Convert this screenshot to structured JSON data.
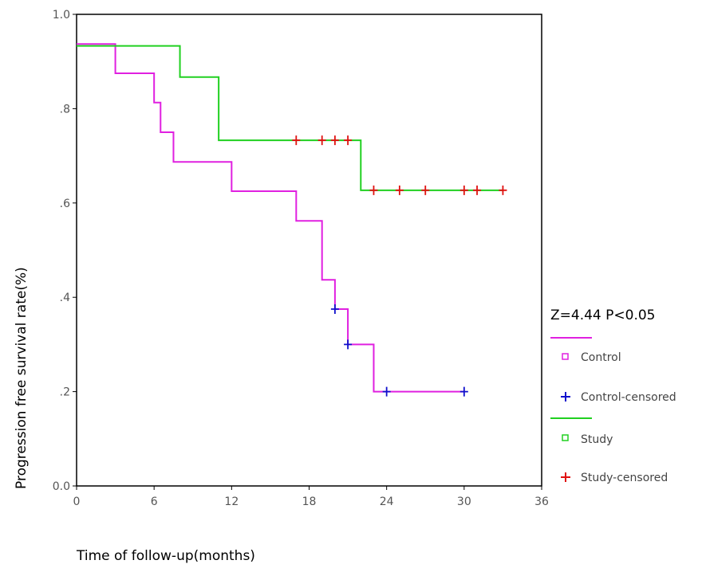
{
  "chart_data": {
    "type": "line",
    "subtype": "kaplan-meier",
    "xlabel": "Time of follow-up(months)",
    "ylabel": "Progression free survival rate(%)",
    "xlim": [
      0,
      36
    ],
    "ylim": [
      0,
      1.0
    ],
    "xticks": [
      {
        "value": 0,
        "label": "0"
      },
      {
        "value": 6,
        "label": "6"
      },
      {
        "value": 12,
        "label": "12"
      },
      {
        "value": 18,
        "label": "18"
      },
      {
        "value": 24,
        "label": "24"
      },
      {
        "value": 30,
        "label": "30"
      },
      {
        "value": 36,
        "label": "36"
      }
    ],
    "yticks": [
      {
        "value": 0,
        "label": "0.0"
      },
      {
        "value": 0.2,
        "label": ".2"
      },
      {
        "value": 0.4,
        "label": ".4"
      },
      {
        "value": 0.6,
        "label": ".6"
      },
      {
        "value": 0.8,
        "label": ".8"
      },
      {
        "value": 1.0,
        "label": "1.0"
      }
    ],
    "grid": false,
    "legend_position": "right",
    "annotation": "Z=4.44 P<0.05",
    "series": [
      {
        "name": "Control",
        "color": "#e020e0",
        "steps": [
          [
            0,
            0.937
          ],
          [
            3,
            0.875
          ],
          [
            6,
            0.813
          ],
          [
            6.5,
            0.75
          ],
          [
            7.5,
            0.687
          ],
          [
            12,
            0.625
          ],
          [
            17,
            0.562
          ],
          [
            19,
            0.437
          ],
          [
            20,
            0.375
          ],
          [
            21,
            0.3
          ],
          [
            23,
            0.2
          ],
          [
            30,
            0.2
          ]
        ],
        "censored_name": "Control-censored",
        "censored_color": "#1010cc",
        "censored": [
          [
            20,
            0.375
          ],
          [
            21,
            0.3
          ],
          [
            24,
            0.2
          ],
          [
            30,
            0.2
          ]
        ]
      },
      {
        "name": "Study",
        "color": "#20d020",
        "steps": [
          [
            0,
            0.933
          ],
          [
            8,
            0.867
          ],
          [
            11,
            0.733
          ],
          [
            22,
            0.627
          ],
          [
            33,
            0.627
          ]
        ],
        "censored_name": "Study-censored",
        "censored_color": "#e01010",
        "censored": [
          [
            17,
            0.733
          ],
          [
            19,
            0.733
          ],
          [
            20,
            0.733
          ],
          [
            21,
            0.733
          ],
          [
            23,
            0.627
          ],
          [
            25,
            0.627
          ],
          [
            27,
            0.627
          ],
          [
            30,
            0.627
          ],
          [
            31,
            0.627
          ],
          [
            33,
            0.627
          ]
        ]
      }
    ]
  }
}
